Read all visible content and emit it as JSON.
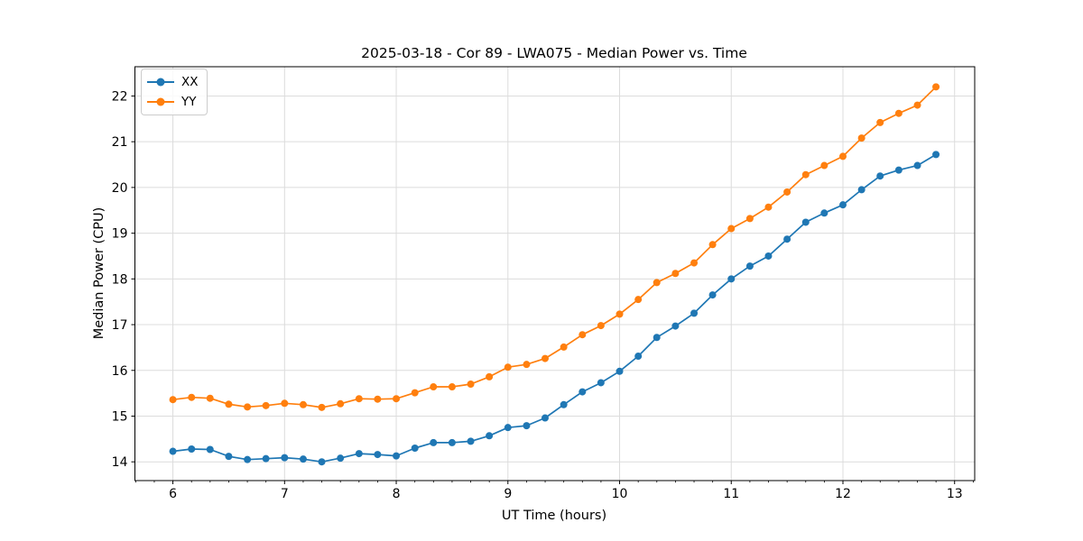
{
  "chart_data": {
    "type": "line",
    "title": "2025-03-18 - Cor 89 - LWA075 - Median Power vs. Time",
    "xlabel": "UT Time (hours)",
    "ylabel": "Median Power (CPU)",
    "grid": true,
    "legend_position": "upper left",
    "xlim": [
      5.66,
      13.18
    ],
    "ylim": [
      13.59,
      22.64
    ],
    "x_ticks": [
      6,
      7,
      8,
      9,
      10,
      11,
      12,
      13
    ],
    "y_ticks": [
      14,
      15,
      16,
      17,
      18,
      19,
      20,
      21,
      22
    ],
    "x_minor_tick_step": 0.16667,
    "x": [
      6.0,
      6.167,
      6.333,
      6.5,
      6.667,
      6.833,
      7.0,
      7.167,
      7.333,
      7.5,
      7.667,
      7.833,
      8.0,
      8.167,
      8.333,
      8.5,
      8.667,
      8.833,
      9.0,
      9.167,
      9.333,
      9.5,
      9.667,
      9.833,
      10.0,
      10.167,
      10.333,
      10.5,
      10.667,
      10.833,
      11.0,
      11.167,
      11.333,
      11.5,
      11.667,
      11.833,
      12.0,
      12.167,
      12.333,
      12.5,
      12.667,
      12.833
    ],
    "series": [
      {
        "name": "XX",
        "color": "#1f77b4",
        "marker": "circle",
        "values": [
          14.23,
          14.28,
          14.27,
          14.12,
          14.05,
          14.07,
          14.09,
          14.06,
          14.0,
          14.08,
          14.18,
          14.16,
          14.13,
          14.3,
          14.42,
          14.42,
          14.45,
          14.57,
          14.75,
          14.79,
          14.96,
          15.25,
          15.53,
          15.73,
          15.98,
          16.31,
          16.72,
          16.97,
          17.25,
          17.65,
          18.0,
          18.28,
          18.5,
          18.87,
          19.24,
          19.44,
          19.62,
          19.95,
          20.25,
          20.38,
          20.48,
          20.72
        ]
      },
      {
        "name": "YY",
        "color": "#ff7f0e",
        "marker": "circle",
        "values": [
          15.36,
          15.41,
          15.39,
          15.26,
          15.2,
          15.23,
          15.28,
          15.25,
          15.19,
          15.27,
          15.38,
          15.37,
          15.38,
          15.51,
          15.64,
          15.64,
          15.7,
          15.86,
          16.07,
          16.13,
          16.26,
          16.51,
          16.78,
          16.98,
          17.23,
          17.55,
          17.92,
          18.12,
          18.35,
          18.75,
          19.1,
          19.32,
          19.57,
          19.9,
          20.28,
          20.48,
          20.68,
          21.08,
          21.42,
          21.62,
          21.8,
          22.2
        ]
      }
    ],
    "style": {
      "grid_color": "#dcdcdc",
      "spine_color": "#000000",
      "background": "#ffffff",
      "line_width": 1.7,
      "marker_radius": 4
    }
  }
}
